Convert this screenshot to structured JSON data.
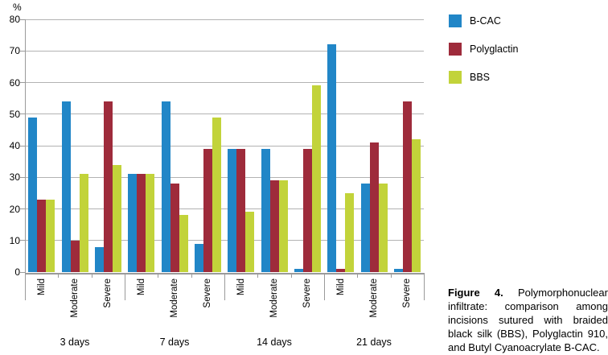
{
  "chart_data": {
    "type": "bar",
    "title": "",
    "ylabel": "%",
    "xlabel": "",
    "ylim": [
      0,
      80
    ],
    "ytick_step": 10,
    "grid": true,
    "legend_position": "right",
    "groups": [
      "3 days",
      "7 days",
      "14 days",
      "21 days"
    ],
    "categories": [
      "Mild",
      "Moderate",
      "Severe"
    ],
    "series": [
      {
        "name": "B-CAC",
        "color": "#2186C7",
        "values": [
          49,
          54,
          8,
          31,
          54,
          9,
          39,
          39,
          1,
          72,
          28,
          1
        ]
      },
      {
        "name": "Polyglactin",
        "color": "#9E2B3B",
        "values": [
          23,
          10,
          54,
          31,
          28,
          39,
          39,
          29,
          39,
          1,
          41,
          54
        ]
      },
      {
        "name": "BBS",
        "color": "#C2D33A",
        "values": [
          23,
          31,
          34,
          31,
          18,
          49,
          19,
          29,
          59,
          25,
          28,
          42
        ]
      }
    ]
  },
  "colors": {
    "gridline": "#b3b3b3",
    "axis": "#9a9a9a",
    "text": "#000000"
  },
  "caption": {
    "bold_prefix": "Figure 4.",
    "line1_rest": "Polymorphonuclear",
    "lines": [
      "infiltrate: comparison among",
      "incisions sutured with braided",
      "black silk (BBS), Polyglactin 910,",
      "and Butyl Cyanoacrylate B-CAC."
    ]
  }
}
